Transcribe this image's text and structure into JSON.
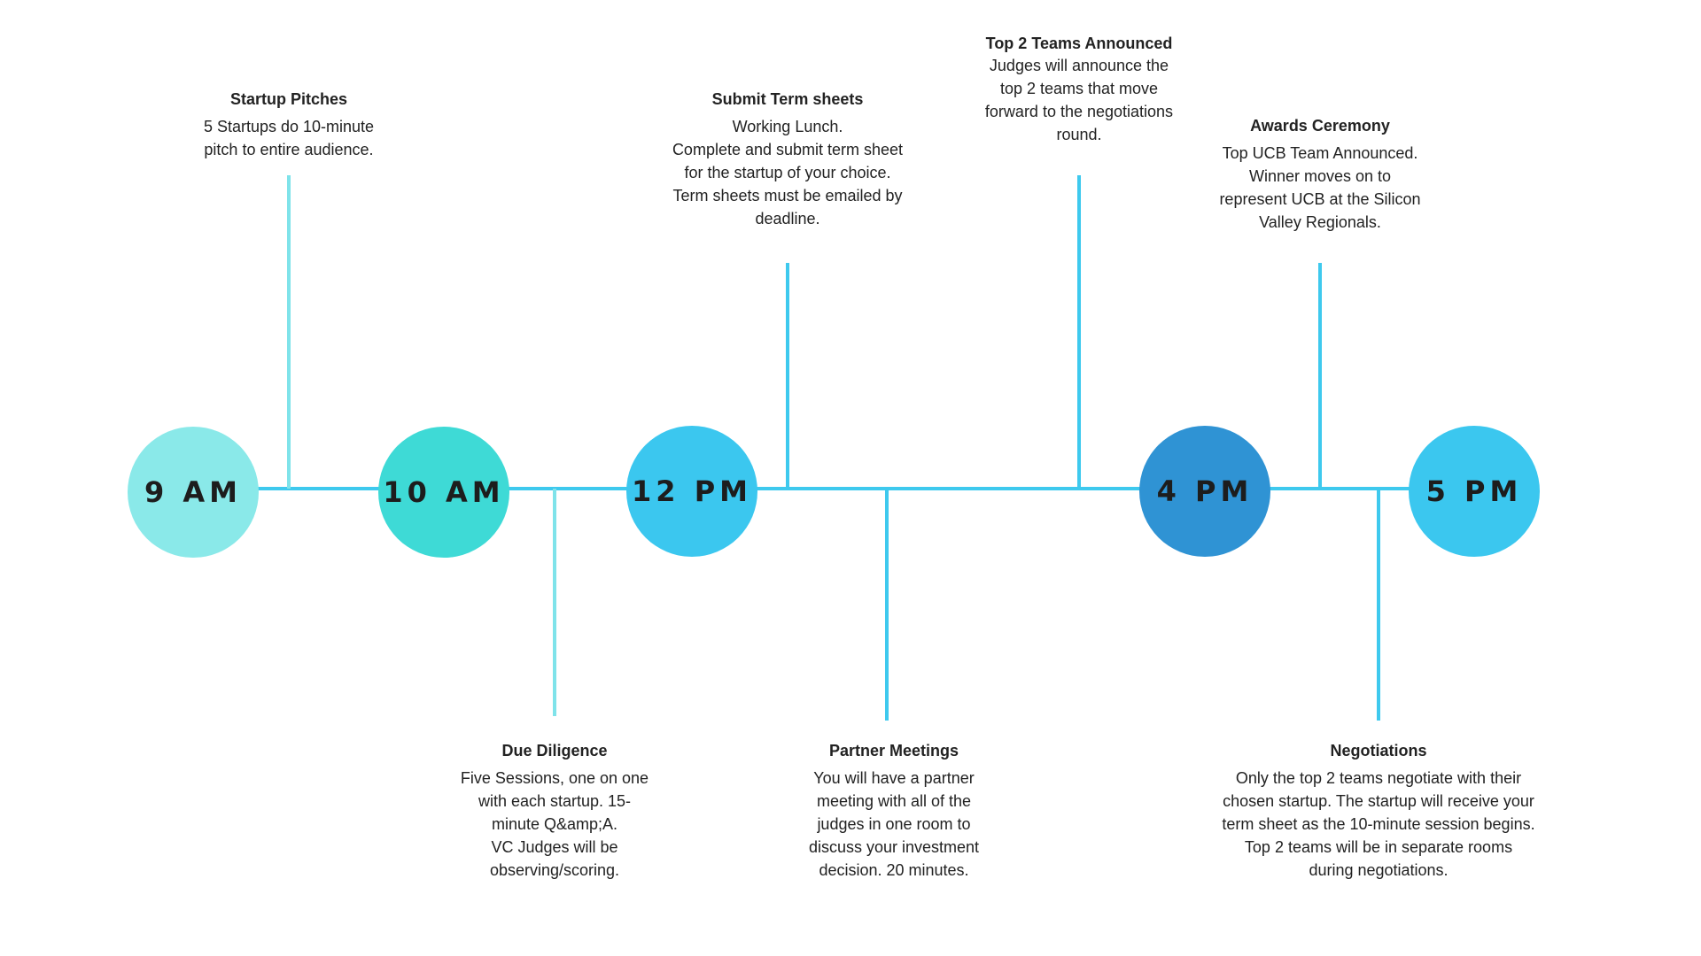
{
  "colors": {
    "axis": "#3ec9ee",
    "connector_light": "#7fe3ea",
    "connector_blue": "#3ec9ee",
    "circle_9am": "#8ae9e9",
    "circle_10am": "#3edad6",
    "circle_12pm": "#3bc7ef",
    "circle_4pm": "#2f93d4",
    "circle_5pm": "#3bc7ef"
  },
  "times": [
    {
      "label": "9 AM"
    },
    {
      "label": "10 AM"
    },
    {
      "label": "12 PM"
    },
    {
      "label": "4 PM"
    },
    {
      "label": "5 PM"
    }
  ],
  "events": [
    {
      "title": "Startup Pitches",
      "lines": [
        "5 Startups do 10-minute",
        "pitch to entire audience."
      ]
    },
    {
      "title": "Submit Term sheets",
      "lines": [
        "Working Lunch.",
        "Complete and submit term sheet",
        "for the startup of your choice.",
        "Term sheets must be emailed by",
        "deadline."
      ]
    },
    {
      "title": "Top 2 Teams Announced",
      "lines": [
        "Judges will announce the",
        "top 2 teams that move",
        "forward to the negotiations",
        "round."
      ]
    },
    {
      "title": "Awards Ceremony",
      "lines": [
        "Top UCB Team Announced.",
        "Winner moves on to",
        "represent UCB at the Silicon",
        "Valley Regionals."
      ]
    },
    {
      "title": "Due Diligence",
      "lines": [
        "Five Sessions, one on one",
        "with each startup. 15-",
        "minute Q&amp;A.",
        "VC Judges will be",
        "observing/scoring."
      ]
    },
    {
      "title": "Partner Meetings",
      "lines": [
        "You will have a partner",
        "meeting with all of the",
        "judges in one room to",
        "discuss your investment",
        "decision. 20 minutes."
      ]
    },
    {
      "title": "Negotiations",
      "lines": [
        "Only the top 2 teams negotiate with their",
        "chosen startup. The startup will receive your",
        "term sheet as the 10-minute session begins.",
        "Top 2 teams will be in separate rooms",
        "during negotiations."
      ]
    }
  ]
}
